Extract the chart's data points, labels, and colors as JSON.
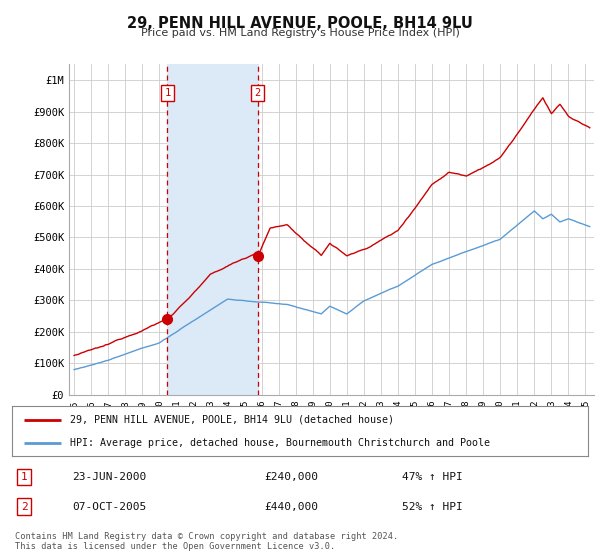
{
  "title": "29, PENN HILL AVENUE, POOLE, BH14 9LU",
  "subtitle": "Price paid vs. HM Land Registry's House Price Index (HPI)",
  "ylabel_ticks": [
    "£0",
    "£100K",
    "£200K",
    "£300K",
    "£400K",
    "£500K",
    "£600K",
    "£700K",
    "£800K",
    "£900K",
    "£1M"
  ],
  "ytick_values": [
    0,
    100000,
    200000,
    300000,
    400000,
    500000,
    600000,
    700000,
    800000,
    900000,
    1000000
  ],
  "ylim": [
    0,
    1050000
  ],
  "xlim_start": 1994.7,
  "xlim_end": 2025.5,
  "bg_color": "#ffffff",
  "plot_bg_color": "#ffffff",
  "grid_color": "#cccccc",
  "sale1_date": 2000.47,
  "sale1_price": 240000,
  "sale2_date": 2005.76,
  "sale2_price": 440000,
  "shade_color": "#dce9f7",
  "line1_color": "#cc0000",
  "line2_color": "#6699cc",
  "vline_color": "#cc0000",
  "legend1": "29, PENN HILL AVENUE, POOLE, BH14 9LU (detached house)",
  "legend2": "HPI: Average price, detached house, Bournemouth Christchurch and Poole",
  "table_row1_num": "1",
  "table_row1_date": "23-JUN-2000",
  "table_row1_price": "£240,000",
  "table_row1_hpi": "47% ↑ HPI",
  "table_row2_num": "2",
  "table_row2_date": "07-OCT-2005",
  "table_row2_price": "£440,000",
  "table_row2_hpi": "52% ↑ HPI",
  "footer": "Contains HM Land Registry data © Crown copyright and database right 2024.\nThis data is licensed under the Open Government Licence v3.0.",
  "xtick_years": [
    1995,
    1996,
    1997,
    1998,
    1999,
    2000,
    2001,
    2002,
    2003,
    2004,
    2005,
    2006,
    2007,
    2008,
    2009,
    2010,
    2011,
    2012,
    2013,
    2014,
    2015,
    2016,
    2017,
    2018,
    2019,
    2020,
    2021,
    2022,
    2023,
    2024,
    2025
  ]
}
